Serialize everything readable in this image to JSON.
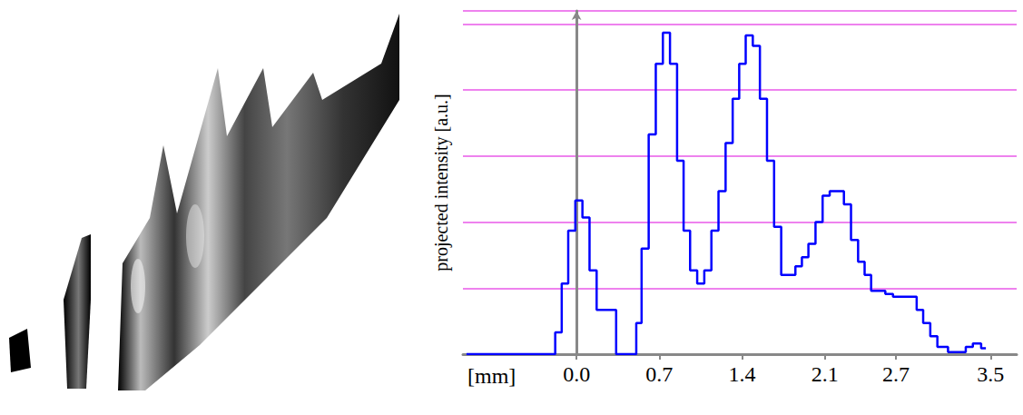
{
  "chart_data": {
    "type": "line",
    "line_style": "step",
    "color": "#0000ff",
    "ylabel": "projected intensity [a.u.]",
    "xlabel": "[mm]",
    "x": [
      -0.93,
      -0.21,
      -0.15,
      -0.1,
      -0.04,
      0.02,
      0.08,
      0.14,
      0.2,
      0.47,
      0.49,
      0.52,
      0.58,
      0.64,
      0.7,
      0.76,
      0.82,
      0.88,
      0.93,
      0.99,
      1.05,
      1.11,
      1.17,
      1.23,
      1.29,
      1.35,
      1.4,
      1.46,
      1.52,
      1.58,
      1.64,
      1.7,
      1.76,
      1.82,
      1.88,
      1.93,
      1.99,
      2.05,
      2.11,
      2.17,
      2.23,
      2.29,
      2.35,
      2.41,
      2.46,
      2.52,
      2.58,
      2.64,
      2.71,
      2.79,
      2.85,
      2.9,
      2.96,
      3.02,
      3.08,
      3.2,
      3.26,
      3.32,
      3.38,
      3.46
    ],
    "values": [
      0,
      0,
      0.33,
      1.07,
      1.87,
      2.33,
      2.07,
      1.27,
      0.67,
      0,
      0,
      0.47,
      1.6,
      3.33,
      4.4,
      4.87,
      4.4,
      2.93,
      1.87,
      1.27,
      1.07,
      1.27,
      1.87,
      2.47,
      3.2,
      3.87,
      4.4,
      4.83,
      4.67,
      3.87,
      2.93,
      1.93,
      1.2,
      1.2,
      1.33,
      1.47,
      1.67,
      2.0,
      2.4,
      2.47,
      2.47,
      2.27,
      1.73,
      1.4,
      1.2,
      0.96,
      0.96,
      0.91,
      0.87,
      0.87,
      0.87,
      0.67,
      0.47,
      0.27,
      0.11,
      0.03,
      0.03,
      0.11,
      0.16,
      0.09
    ],
    "xlim": [
      -0.96,
      3.72
    ],
    "ylim": [
      0,
      5.2
    ],
    "xticks": [
      {
        "value": 0,
        "label": "0.0"
      },
      0.7,
      1.4,
      2.1,
      2.7,
      3.5
    ],
    "yticks": [
      0,
      1,
      2,
      3,
      4,
      5
    ],
    "grid": true,
    "tick_labels": "x"
  }
}
